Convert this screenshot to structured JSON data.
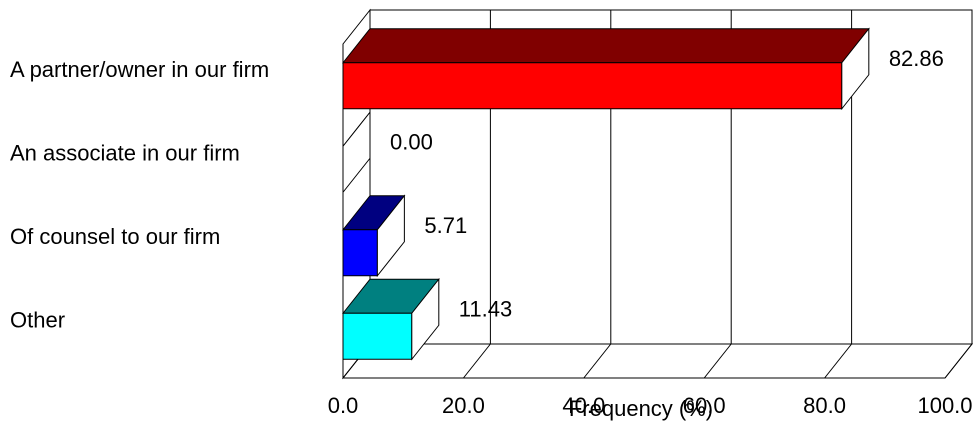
{
  "chart_data": {
    "type": "bar",
    "orientation": "horizontal",
    "style": "3d",
    "categories": [
      "A partner/owner in our firm",
      "An associate in our firm",
      "Of counsel to our firm",
      "Other"
    ],
    "values": [
      82.86,
      0.0,
      5.71,
      11.43
    ],
    "value_labels": [
      "82.86",
      "0.00",
      "5.71",
      "11.43"
    ],
    "bar_colors": [
      "#ff0000",
      "#ffffff",
      "#0000ff",
      "#00ffff"
    ],
    "bar_top_colors": [
      "#800000",
      "#ffffff",
      "#000080",
      "#008080"
    ],
    "xlabel": "Frequency (%)",
    "ylabel": "",
    "title": "",
    "xlim": [
      0,
      100
    ],
    "x_ticks": [
      0,
      20,
      40,
      60,
      80,
      100
    ],
    "x_tick_labels": [
      "0.0",
      "20.0",
      "40.0",
      "60.0",
      "80.0",
      "100.0"
    ],
    "grid": true,
    "legend": "none"
  }
}
